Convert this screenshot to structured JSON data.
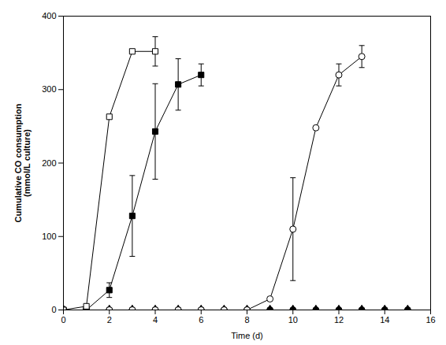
{
  "chart_data": {
    "type": "line",
    "xlabel": "Time (d)",
    "ylabel": "Cumulative CO consumption\n(mmol/L culture)",
    "xlim": [
      0,
      16
    ],
    "ylim": [
      0,
      400
    ],
    "xticks": [
      0,
      2,
      4,
      6,
      8,
      10,
      12,
      14,
      16
    ],
    "yticks": [
      0,
      100,
      200,
      300,
      400
    ],
    "series": [
      {
        "color": "#000000",
        "marker": "circle",
        "x": [
          0,
          1,
          2,
          3,
          4,
          5,
          6,
          7,
          8,
          9,
          10,
          11,
          12,
          13,
          14,
          15
        ],
        "values": [
          0,
          0,
          0,
          0,
          0,
          0,
          0,
          0,
          0,
          0,
          0,
          0,
          0,
          0,
          0,
          0
        ],
        "yerr": [
          0,
          0,
          0,
          0,
          0,
          0,
          0,
          0,
          0,
          0,
          0,
          0,
          0,
          0,
          0,
          0
        ]
      },
      {
        "color": "#000000",
        "marker": "triangle",
        "x": [
          0,
          1,
          2,
          3,
          4,
          5,
          6,
          7,
          8,
          9,
          10,
          11,
          12,
          13,
          14,
          15
        ],
        "values": [
          0,
          0,
          0,
          0,
          0,
          0,
          0,
          0,
          0,
          0,
          0,
          0,
          0,
          0,
          0,
          0
        ],
        "yerr": [
          0,
          0,
          0,
          0,
          0,
          0,
          0,
          0,
          0,
          0,
          0,
          0,
          0,
          0,
          0,
          0
        ]
      },
      {
        "color": "#000000",
        "marker": "open_circle",
        "x": [
          0,
          1,
          2,
          3,
          4,
          5,
          6,
          7,
          8,
          9,
          10,
          11,
          12,
          13
        ],
        "values": [
          0,
          0,
          0,
          0,
          0,
          0,
          0,
          0,
          0,
          15,
          110,
          248,
          320,
          345
        ],
        "yerr": [
          0,
          0,
          0,
          0,
          0,
          0,
          0,
          0,
          0,
          0,
          70,
          0,
          15,
          15
        ]
      },
      {
        "color": "#000000",
        "marker": "square",
        "x": [
          0,
          1,
          2,
          3,
          4,
          5,
          6
        ],
        "values": [
          0,
          0,
          27,
          128,
          243,
          307,
          320
        ],
        "yerr": [
          0,
          0,
          10,
          55,
          65,
          35,
          15
        ]
      },
      {
        "color": "#000000",
        "marker": "open_square",
        "x": [
          0,
          1,
          2,
          3,
          4
        ],
        "values": [
          0,
          5,
          263,
          352,
          352
        ],
        "yerr": [
          0,
          0,
          0,
          0,
          20
        ]
      }
    ]
  }
}
